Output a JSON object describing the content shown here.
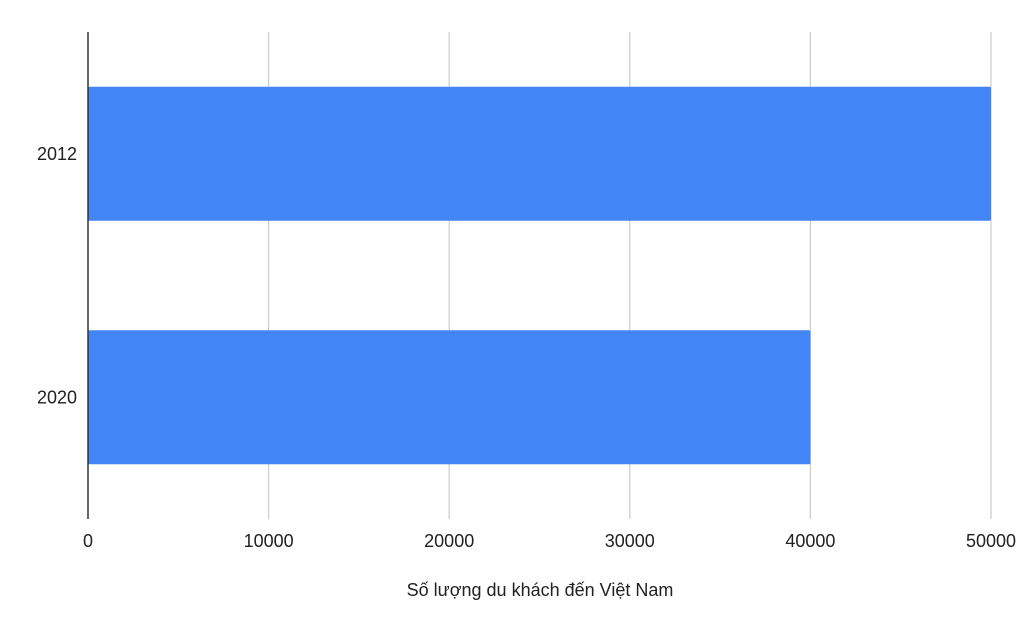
{
  "chart_data": {
    "type": "bar",
    "orientation": "horizontal",
    "categories": [
      "2012",
      "2020"
    ],
    "values": [
      50000,
      40000
    ],
    "title": "",
    "xlabel": "Số lượng du khách đến Việt Nam",
    "ylabel": "",
    "xlim": [
      0,
      50000
    ],
    "x_ticks": [
      "0",
      "10000",
      "20000",
      "30000",
      "40000",
      "50000"
    ],
    "grid": true,
    "legend": "none",
    "bar_color": "#4285F4",
    "grid_color": "#CCCCCC",
    "axis_color": "#333333"
  }
}
